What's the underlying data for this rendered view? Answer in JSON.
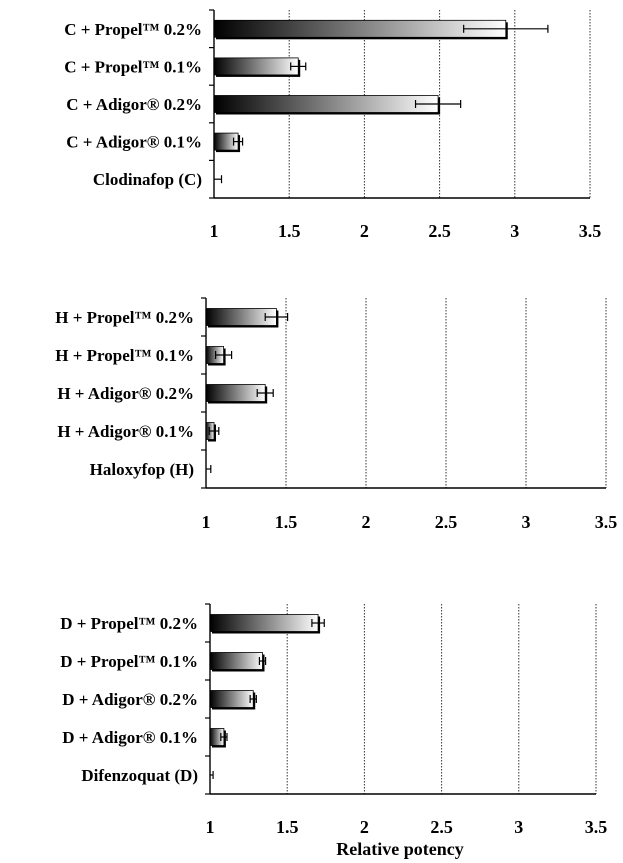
{
  "chart_data": [
    {
      "type": "bar",
      "orientation": "horizontal",
      "categories": [
        "C + Propel™ 0.2%",
        "C + Propel™ 0.1%",
        "C + Adigor® 0.2%",
        "C + Adigor® 0.1%",
        "Clodinafop (C)"
      ],
      "values": [
        2.94,
        1.56,
        2.49,
        1.16,
        1.0
      ],
      "errors": [
        0.28,
        0.05,
        0.15,
        0.03,
        0.05
      ],
      "xlim": [
        1,
        3.5
      ],
      "xticks": [
        "1",
        "1.5",
        "2",
        "2.5",
        "3",
        "3.5"
      ],
      "grid": "vertical",
      "xlabel": ""
    },
    {
      "type": "bar",
      "orientation": "horizontal",
      "categories": [
        "H + Propel™ 0.2%",
        "H + Propel™ 0.1%",
        "H + Adigor® 0.2%",
        "H + Adigor® 0.1%",
        "Haloxyfop (H)"
      ],
      "values": [
        1.44,
        1.11,
        1.37,
        1.05,
        1.0
      ],
      "errors": [
        0.07,
        0.05,
        0.05,
        0.03,
        0.03
      ],
      "xlim": [
        1,
        3.5
      ],
      "xticks": [
        "1",
        "1.5",
        "2",
        "2.5",
        "3",
        "3.5"
      ],
      "grid": "vertical",
      "xlabel": ""
    },
    {
      "type": "bar",
      "orientation": "horizontal",
      "categories": [
        "D + Propel™ 0.2%",
        "D + Propel™ 0.1%",
        "D + Adigor® 0.2%",
        "D + Adigor® 0.1%",
        "Difenzoquat (D)"
      ],
      "values": [
        1.7,
        1.34,
        1.28,
        1.09,
        1.0
      ],
      "errors": [
        0.04,
        0.02,
        0.02,
        0.02,
        0.02
      ],
      "xlim": [
        1,
        3.5
      ],
      "xticks": [
        "1",
        "1.5",
        "2",
        "2.5",
        "3",
        "3.5"
      ],
      "grid": "vertical",
      "xlabel": "Relative potency"
    }
  ]
}
